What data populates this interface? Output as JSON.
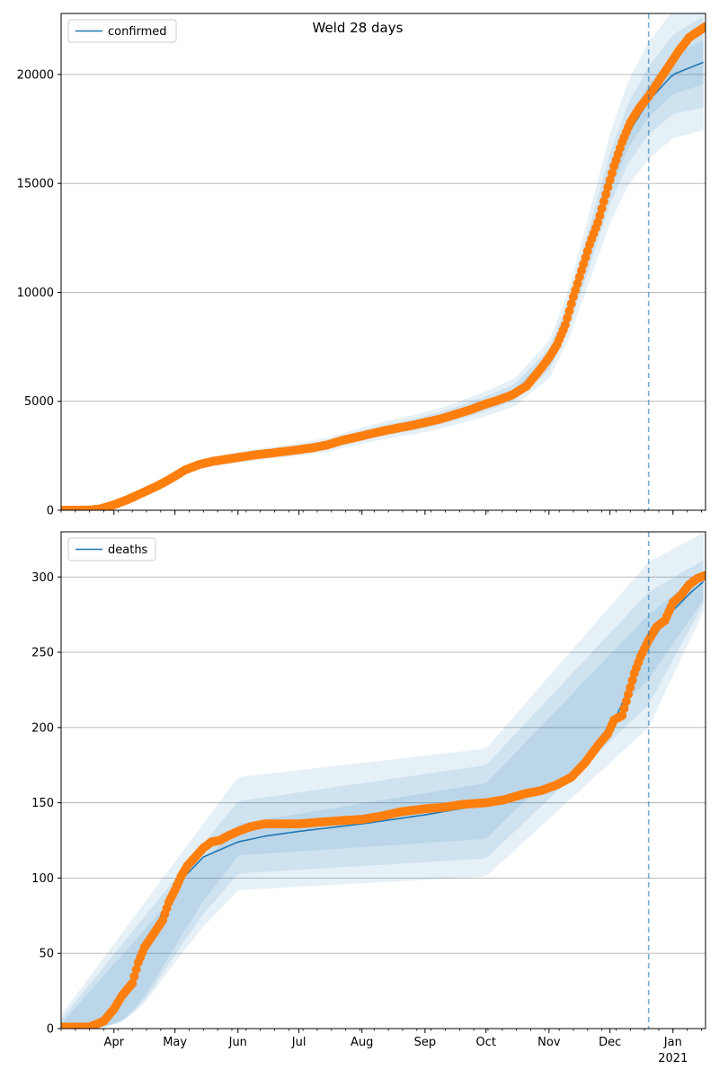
{
  "figure": {
    "title": "Weld 28 days"
  },
  "colors": {
    "model": "#1f77b4",
    "observed": "#ff7f0e",
    "band": "#1f77b4",
    "grid": "#b0b0b0"
  },
  "chart_data": [
    {
      "type": "line",
      "legend": "confirmed",
      "legend_position": "top-left",
      "grid": "horizontal",
      "ylim": [
        0,
        22800
      ],
      "yticks": [
        0,
        5000,
        10000,
        15000,
        20000
      ],
      "x_start": "2020-03-06",
      "x_end": "2021-01-17",
      "forecast_start": "2020-12-20",
      "month_ticks": [
        {
          "date": "2020-04-01",
          "label": "Apr"
        },
        {
          "date": "2020-05-01",
          "label": "May"
        },
        {
          "date": "2020-06-01",
          "label": "Jun"
        },
        {
          "date": "2020-07-01",
          "label": "Jul"
        },
        {
          "date": "2020-08-01",
          "label": "Aug"
        },
        {
          "date": "2020-09-01",
          "label": "Sep"
        },
        {
          "date": "2020-10-01",
          "label": "Oct"
        },
        {
          "date": "2020-11-01",
          "label": "Nov"
        },
        {
          "date": "2020-12-01",
          "label": "Dec"
        },
        {
          "date": "2021-01-01",
          "label": "Jan"
        }
      ],
      "year_label": "2021",
      "show_tick_labels": false,
      "observed": [
        [
          "2020-03-06",
          0
        ],
        [
          "2020-03-20",
          10
        ],
        [
          "2020-03-25",
          60
        ],
        [
          "2020-04-01",
          250
        ],
        [
          "2020-04-08",
          500
        ],
        [
          "2020-04-15",
          800
        ],
        [
          "2020-04-22",
          1100
        ],
        [
          "2020-04-29",
          1450
        ],
        [
          "2020-05-06",
          1850
        ],
        [
          "2020-05-13",
          2100
        ],
        [
          "2020-05-20",
          2250
        ],
        [
          "2020-05-27",
          2350
        ],
        [
          "2020-06-03",
          2450
        ],
        [
          "2020-06-10",
          2550
        ],
        [
          "2020-06-17",
          2620
        ],
        [
          "2020-06-24",
          2700
        ],
        [
          "2020-07-01",
          2780
        ],
        [
          "2020-07-08",
          2870
        ],
        [
          "2020-07-15",
          3000
        ],
        [
          "2020-07-22",
          3200
        ],
        [
          "2020-07-29",
          3350
        ],
        [
          "2020-08-05",
          3500
        ],
        [
          "2020-08-12",
          3650
        ],
        [
          "2020-08-19",
          3780
        ],
        [
          "2020-08-26",
          3900
        ],
        [
          "2020-09-02",
          4050
        ],
        [
          "2020-09-09",
          4200
        ],
        [
          "2020-09-16",
          4400
        ],
        [
          "2020-09-23",
          4600
        ],
        [
          "2020-09-30",
          4850
        ],
        [
          "2020-10-07",
          5050
        ],
        [
          "2020-10-14",
          5300
        ],
        [
          "2020-10-21",
          5700
        ],
        [
          "2020-10-28",
          6500
        ],
        [
          "2020-11-01",
          7000
        ],
        [
          "2020-11-05",
          7600
        ],
        [
          "2020-11-09",
          8500
        ],
        [
          "2020-11-13",
          9800
        ],
        [
          "2020-11-17",
          11000
        ],
        [
          "2020-11-21",
          12200
        ],
        [
          "2020-11-25",
          13200
        ],
        [
          "2020-11-29",
          14500
        ],
        [
          "2020-12-03",
          15800
        ],
        [
          "2020-12-07",
          16900
        ],
        [
          "2020-12-11",
          17800
        ],
        [
          "2020-12-15",
          18400
        ],
        [
          "2020-12-20",
          19000
        ],
        [
          "2020-12-25",
          19700
        ],
        [
          "2020-12-30",
          20400
        ],
        [
          "2021-01-04",
          21100
        ],
        [
          "2021-01-09",
          21700
        ],
        [
          "2021-01-17",
          22200
        ]
      ],
      "model": [
        [
          "2020-03-06",
          0
        ],
        [
          "2020-03-20",
          10
        ],
        [
          "2020-04-01",
          220
        ],
        [
          "2020-04-15",
          750
        ],
        [
          "2020-05-01",
          1650
        ],
        [
          "2020-05-15",
          2150
        ],
        [
          "2020-06-01",
          2420
        ],
        [
          "2020-06-15",
          2600
        ],
        [
          "2020-07-01",
          2780
        ],
        [
          "2020-07-15",
          3000
        ],
        [
          "2020-08-01",
          3420
        ],
        [
          "2020-08-15",
          3720
        ],
        [
          "2020-09-01",
          4030
        ],
        [
          "2020-09-15",
          4380
        ],
        [
          "2020-10-01",
          4880
        ],
        [
          "2020-10-15",
          5400
        ],
        [
          "2020-11-01",
          6900
        ],
        [
          "2020-11-10",
          8800
        ],
        [
          "2020-11-20",
          11800
        ],
        [
          "2020-12-01",
          15200
        ],
        [
          "2020-12-10",
          17300
        ],
        [
          "2020-12-20",
          18800
        ],
        [
          "2021-01-01",
          20000
        ],
        [
          "2021-01-17",
          20600
        ]
      ],
      "bands": [
        {
          "offsets": [
            0.025,
            0.045,
            0.06,
            0.08,
            0.1
          ],
          "dates": [
            "2020-03-06",
            "2020-06-01",
            "2020-10-15",
            "2020-12-20",
            "2021-01-17"
          ]
        },
        {
          "offsets": [
            0.05,
            0.08,
            0.11,
            0.14,
            0.15
          ],
          "dates": [
            "2020-03-06",
            "2020-06-01",
            "2020-10-15",
            "2020-12-20",
            "2021-01-17"
          ]
        }
      ]
    },
    {
      "type": "line",
      "legend": "deaths",
      "legend_position": "top-left",
      "grid": "horizontal",
      "ylim": [
        0,
        330
      ],
      "yticks": [
        0,
        50,
        100,
        150,
        200,
        250,
        300
      ],
      "x_start": "2020-03-06",
      "x_end": "2021-01-17",
      "forecast_start": "2020-12-20",
      "show_tick_labels": true,
      "observed": [
        [
          "2020-03-06",
          1
        ],
        [
          "2020-03-20",
          1
        ],
        [
          "2020-03-27",
          5
        ],
        [
          "2020-04-01",
          13
        ],
        [
          "2020-04-05",
          22
        ],
        [
          "2020-04-10",
          30
        ],
        [
          "2020-04-13",
          44
        ],
        [
          "2020-04-16",
          54
        ],
        [
          "2020-04-19",
          60
        ],
        [
          "2020-04-22",
          66
        ],
        [
          "2020-04-25",
          72
        ],
        [
          "2020-04-28",
          84
        ],
        [
          "2020-05-01",
          92
        ],
        [
          "2020-05-04",
          101
        ],
        [
          "2020-05-07",
          108
        ],
        [
          "2020-05-11",
          114
        ],
        [
          "2020-05-15",
          120
        ],
        [
          "2020-05-19",
          124
        ],
        [
          "2020-05-23",
          125
        ],
        [
          "2020-05-27",
          128
        ],
        [
          "2020-06-01",
          131
        ],
        [
          "2020-06-07",
          134
        ],
        [
          "2020-06-14",
          136
        ],
        [
          "2020-06-21",
          136
        ],
        [
          "2020-07-01",
          136
        ],
        [
          "2020-07-10",
          137
        ],
        [
          "2020-07-20",
          138
        ],
        [
          "2020-08-01",
          139
        ],
        [
          "2020-08-10",
          141
        ],
        [
          "2020-08-20",
          144
        ],
        [
          "2020-09-01",
          146
        ],
        [
          "2020-09-10",
          147
        ],
        [
          "2020-09-20",
          149
        ],
        [
          "2020-10-01",
          150
        ],
        [
          "2020-10-10",
          152
        ],
        [
          "2020-10-20",
          156
        ],
        [
          "2020-10-28",
          158
        ],
        [
          "2020-11-05",
          162
        ],
        [
          "2020-11-12",
          167
        ],
        [
          "2020-11-19",
          177
        ],
        [
          "2020-11-25",
          188
        ],
        [
          "2020-11-30",
          196
        ],
        [
          "2020-12-03",
          205
        ],
        [
          "2020-12-07",
          208
        ],
        [
          "2020-12-10",
          222
        ],
        [
          "2020-12-13",
          236
        ],
        [
          "2020-12-16",
          247
        ],
        [
          "2020-12-20",
          258
        ],
        [
          "2020-12-24",
          267
        ],
        [
          "2020-12-28",
          271
        ],
        [
          "2021-01-01",
          283
        ],
        [
          "2021-01-05",
          288
        ],
        [
          "2021-01-09",
          295
        ],
        [
          "2021-01-13",
          299
        ],
        [
          "2021-01-17",
          301
        ]
      ],
      "model": [
        [
          "2020-03-06",
          0
        ],
        [
          "2020-03-25",
          3
        ],
        [
          "2020-04-05",
          18
        ],
        [
          "2020-04-15",
          46
        ],
        [
          "2020-04-25",
          78
        ],
        [
          "2020-05-05",
          100
        ],
        [
          "2020-05-15",
          114
        ],
        [
          "2020-06-01",
          124
        ],
        [
          "2020-06-15",
          128
        ],
        [
          "2020-07-01",
          131
        ],
        [
          "2020-08-01",
          136
        ],
        [
          "2020-09-01",
          142
        ],
        [
          "2020-10-01",
          149
        ],
        [
          "2020-10-20",
          154
        ],
        [
          "2020-11-05",
          161
        ],
        [
          "2020-11-20",
          178
        ],
        [
          "2020-12-01",
          198
        ],
        [
          "2020-12-10",
          225
        ],
        [
          "2020-12-20",
          254
        ],
        [
          "2020-12-30",
          275
        ],
        [
          "2021-01-10",
          290
        ],
        [
          "2021-01-17",
          298
        ]
      ],
      "band_abs": [
        {
          "dates": [
            "2020-03-06",
            "2020-06-01",
            "2020-10-01",
            "2020-12-20",
            "2021-01-17"
          ],
          "lower": [
            0,
            115,
            126,
            232,
            287
          ],
          "upper": [
            3,
            136,
            163,
            275,
            305
          ]
        },
        {
          "dates": [
            "2020-03-06",
            "2020-06-01",
            "2020-10-01",
            "2020-12-20",
            "2021-01-17"
          ],
          "lower": [
            0,
            103,
            113,
            215,
            285
          ],
          "upper": [
            6,
            151,
            175,
            290,
            312
          ]
        },
        {
          "dates": [
            "2020-03-06",
            "2020-06-01",
            "2020-10-01",
            "2020-12-20",
            "2021-01-17"
          ],
          "lower": [
            0,
            92,
            101,
            200,
            280
          ],
          "upper": [
            9,
            167,
            186,
            310,
            330
          ]
        }
      ]
    }
  ]
}
